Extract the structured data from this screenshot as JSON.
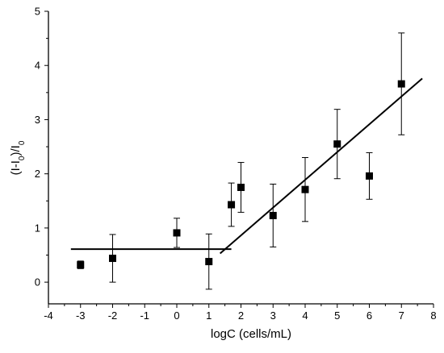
{
  "chart_data": {
    "type": "scatter",
    "xlabel": "logC (cells/mL)",
    "ylabel_parts": [
      "(I-I",
      "0",
      ")/I",
      "0"
    ],
    "xlim": [
      -4,
      8
    ],
    "ylim": [
      -0.4,
      5
    ],
    "x_ticks": [
      -4,
      -3,
      -2,
      -1,
      0,
      1,
      2,
      3,
      4,
      5,
      6,
      7,
      8
    ],
    "x_tick_labels": [
      "-4",
      "-3",
      "-2",
      "-1",
      "0",
      "1",
      "2",
      "3",
      "4",
      "5",
      "6",
      "7",
      "8"
    ],
    "y_ticks": [
      0,
      1,
      2,
      3,
      4,
      5
    ],
    "y_tick_labels": [
      "0",
      "1",
      "2",
      "3",
      "4",
      "5"
    ],
    "grid": false,
    "points": [
      {
        "x": -3,
        "y": 0.32,
        "err": 0.07
      },
      {
        "x": -2,
        "y": 0.44,
        "err": 0.44
      },
      {
        "x": 0,
        "y": 0.91,
        "err": 0.27
      },
      {
        "x": 1,
        "y": 0.38,
        "err": 0.51
      },
      {
        "x": 1.7,
        "y": 1.43,
        "err": 0.4
      },
      {
        "x": 2,
        "y": 1.75,
        "err": 0.46
      },
      {
        "x": 3,
        "y": 1.23,
        "err": 0.58
      },
      {
        "x": 4,
        "y": 1.71,
        "err": 0.59
      },
      {
        "x": 5,
        "y": 2.55,
        "err": 0.64
      },
      {
        "x": 6,
        "y": 1.96,
        "err": 0.43
      },
      {
        "x": 7,
        "y": 3.66,
        "err": 0.94
      }
    ],
    "fit_lines": [
      {
        "x": [
          -3.3,
          1.7
        ],
        "y": [
          0.61,
          0.61
        ]
      },
      {
        "x": [
          1.35,
          7.65
        ],
        "y": [
          0.53,
          3.76
        ]
      }
    ]
  }
}
